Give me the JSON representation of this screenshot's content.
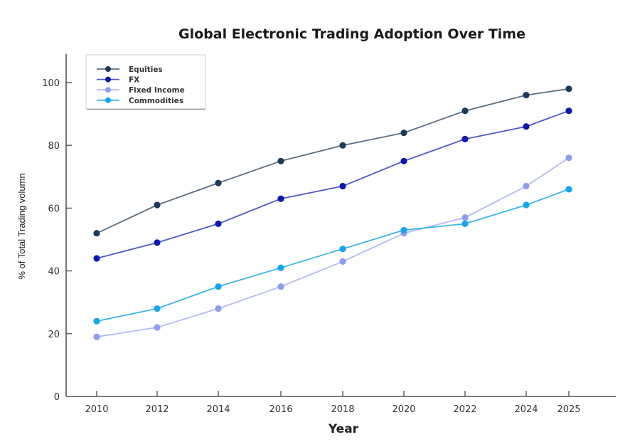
{
  "chart_data": {
    "type": "line",
    "title": "Global Electronic Trading Adoption Over Time",
    "xlabel": "Year",
    "ylabel": "% of Total Trading volumn",
    "categories": [
      "2010",
      "2012",
      "2014",
      "2016",
      "2018",
      "2020",
      "2022",
      "2024",
      "2025"
    ],
    "x": [
      2010,
      2012,
      2014,
      2016,
      2018,
      2020,
      2022,
      2024,
      2025
    ],
    "ylim": [
      0,
      110
    ],
    "yticks": [
      0,
      20,
      40,
      60,
      80,
      100
    ],
    "ytick_labels": [
      "0",
      "20",
      "40",
      "60",
      "80",
      "100"
    ],
    "grid": false,
    "legend_position": "top-left",
    "series": [
      {
        "name": "Equities",
        "values": [
          52,
          61,
          68,
          75,
          80,
          84,
          91,
          96,
          98
        ],
        "marker_color": "#1b3a5c",
        "line_color": "#5d6d80"
      },
      {
        "name": "FX",
        "values": [
          44,
          49,
          55,
          63,
          67,
          75,
          82,
          86,
          91
        ],
        "marker_color": "#0b16b8",
        "line_color": "#5058cc"
      },
      {
        "name": "Fixed Income",
        "values": [
          19,
          22,
          28,
          35,
          43,
          52,
          57,
          67,
          76
        ],
        "marker_color": "#8f9cf5",
        "line_color": "#b4bcf5"
      },
      {
        "name": "Commodities",
        "values": [
          24,
          28,
          35,
          41,
          47,
          53,
          55,
          61,
          66
        ],
        "marker_color": "#12a6f2",
        "line_color": "#3cb4ec"
      }
    ]
  }
}
